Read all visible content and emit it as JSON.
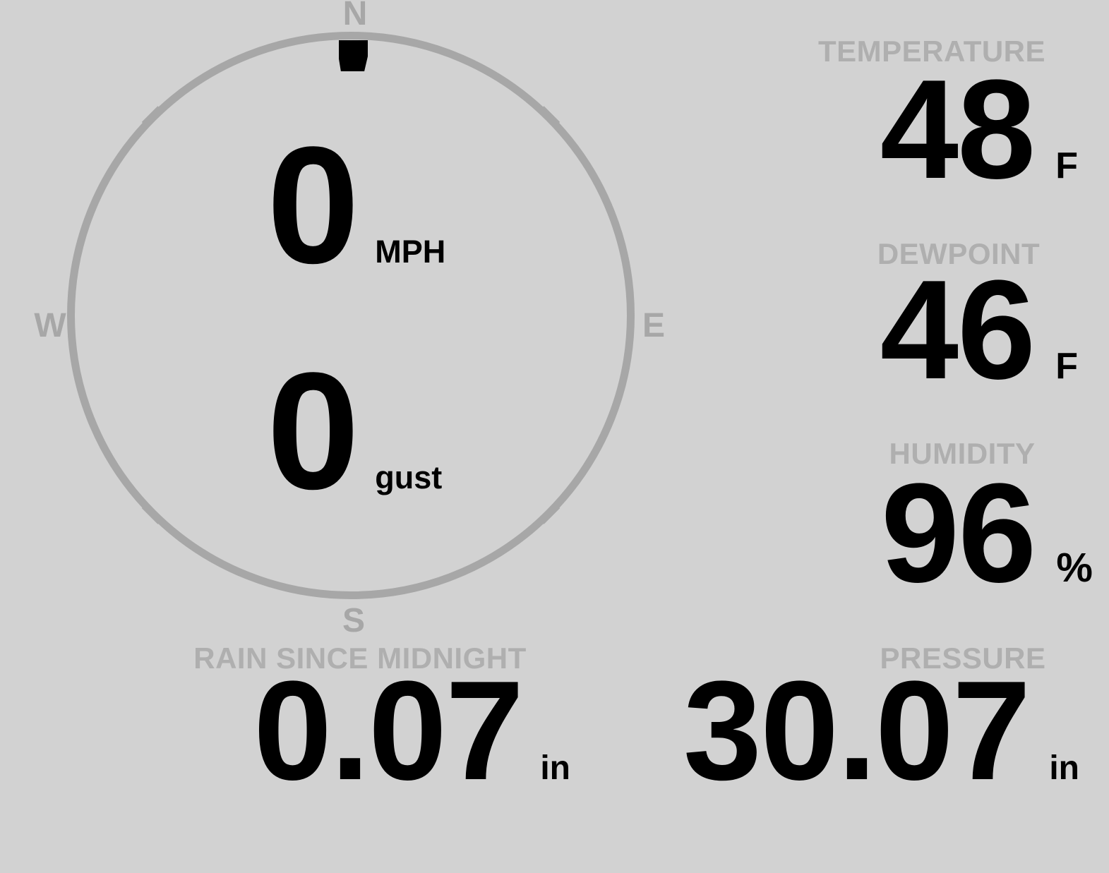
{
  "theme": {
    "background": "#d2d2d2",
    "dial_color": "#a7a7a7",
    "label_color": "#afafaf",
    "value_color": "#000000"
  },
  "compass": {
    "cardinal_labels": {
      "north": "N",
      "east": "E",
      "south": "S",
      "west": "W"
    },
    "marker_direction": "N",
    "speed": {
      "value": "0",
      "unit": "MPH"
    },
    "gust": {
      "value": "0",
      "unit": "gust"
    }
  },
  "metrics": {
    "temperature": {
      "label": "TEMPERATURE",
      "value": "48",
      "unit": "F"
    },
    "dewpoint": {
      "label": "DEWPOINT",
      "value": "46",
      "unit": "F"
    },
    "humidity": {
      "label": "HUMIDITY",
      "value": "96",
      "unit": "%"
    },
    "rain_since_midnight": {
      "label": "RAIN SINCE MIDNIGHT",
      "value": "0.07",
      "unit": "in"
    },
    "pressure": {
      "label": "PRESSURE",
      "value": "30.07",
      "unit": "in"
    }
  }
}
